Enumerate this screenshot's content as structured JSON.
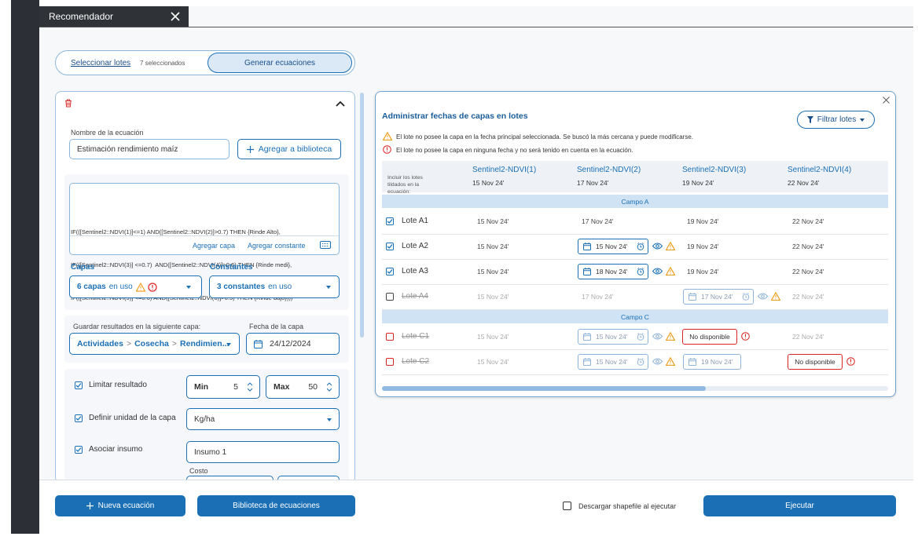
{
  "tab": {
    "title": "Recomendador"
  },
  "stepper": {
    "step1": "Seleccionar lotes",
    "step1_count": "7 seleccionados",
    "step2": "Generar ecuaciones"
  },
  "equation": {
    "name_label": "Nombre de la ecuación",
    "name_value": "Estimación rendimiento maíz",
    "add_library": "Agregar a biblioteca",
    "formula": [
      "IF(([Sentinel2::NDVI(1)]<=1) AND([Sentinel2::NDVI(2)]>0.7) THEN {Rinde Alto},",
      "IF(([Sentinel2::NDVI(3)] <=0.7)  AND([Sentinel2::NDVI(4)]>0.6) THEN {Rinde medi},",
      "IF(([Sentinel2::NDVI(5)] <=0.6) AND([Sentinel2::NDVI(6)]>0.5) THEN {Rinde bajo})))"
    ],
    "add_layer": "Agregar capa",
    "add_constant": "Agregar constante",
    "layers_label": "Capas",
    "layers_count": "6 capas",
    "layers_suffix": "en uso",
    "constants_label": "Constantes",
    "constants_count": "3 constantes",
    "constants_suffix": "en uso",
    "save_label": "Guardar resultados en la siguiente capa:",
    "save_path": [
      "Actividades",
      ">",
      "Cosecha",
      ">",
      "Rendimien..."
    ],
    "date_label": "Fecha de la capa",
    "date_value": "24/12/2024",
    "limit_label": "Limitar resultado",
    "min_label": "Min",
    "min_value": 5,
    "max_label": "Max",
    "max_value": 50,
    "unit_label": "Definir unidad de la capa",
    "unit_value": "Kg/ha",
    "input_label": "Asociar insumo",
    "input_value": "Insumo 1",
    "cost_label": "Costo"
  },
  "dates_panel": {
    "title": "Administrar fechas de capas en lotes",
    "filter": "Filtrar lotes",
    "warning_note": "El lote no posee la capa en la fecha principal seleccionada. Se buscó la más cercana y puede modificarse.",
    "error_note": "El lote no posee la capa en ninguna fecha y no será tenido en cuenta en la ecuación.",
    "include_label": "Incluir los lotes tildados en la ecuación:",
    "columns": [
      {
        "name": "Sentinel2-NDVI(1)",
        "date": "15 Nov 24'"
      },
      {
        "name": "Sentinel2-NDVI(2)",
        "date": "17 Nov 24'"
      },
      {
        "name": "Sentinel2-NDVI(3)",
        "date": "19 Nov 24'"
      },
      {
        "name": "Sentinel2-NDVI(4)",
        "date": "22 Nov 24'"
      }
    ],
    "groups": [
      {
        "name": "Campo A",
        "rows": [
          {
            "name": "Lote A1",
            "state": "included",
            "cells": [
              {
                "text": "15 Nov 24'",
                "kind": "plain"
              },
              {
                "text": "17 Nov 24'",
                "kind": "plain"
              },
              {
                "text": "19 Nov 24'",
                "kind": "plain"
              },
              {
                "text": "22 Nov 24'",
                "kind": "plain"
              }
            ]
          },
          {
            "name": "Lote A2",
            "state": "included",
            "cells": [
              {
                "text": "15 Nov 24'",
                "kind": "plain"
              },
              {
                "text": "15 Nov 24'",
                "kind": "picker",
                "warning": true
              },
              {
                "text": "19 Nov 24'",
                "kind": "plain"
              },
              {
                "text": "22 Nov 24'",
                "kind": "plain"
              }
            ]
          },
          {
            "name": "Lote A3",
            "state": "included",
            "cells": [
              {
                "text": "15 Nov 24'",
                "kind": "plain"
              },
              {
                "text": "18 Nov 24'",
                "kind": "picker",
                "warning": true
              },
              {
                "text": "19 Nov 24'",
                "kind": "plain"
              },
              {
                "text": "22 Nov 24'",
                "kind": "plain"
              }
            ]
          },
          {
            "name": "Lote A4",
            "state": "excluded",
            "cells": [
              {
                "text": "15 Nov 24'",
                "kind": "plain"
              },
              {
                "text": "17 Nov 24'",
                "kind": "plain"
              },
              {
                "text": "17 Nov 24'",
                "kind": "picker",
                "warning": true
              },
              {
                "text": "22 Nov 24'",
                "kind": "plain"
              }
            ]
          }
        ]
      },
      {
        "name": "Campo C",
        "rows": [
          {
            "name": "Lote C1",
            "state": "unavailable",
            "cells": [
              {
                "text": "15 Nov 24'",
                "kind": "plain"
              },
              {
                "text": "15 Nov 24'",
                "kind": "picker",
                "warning": true
              },
              {
                "text": "No disponible",
                "kind": "unavailable"
              },
              {
                "text": "22 Nov 24'",
                "kind": "plain"
              }
            ]
          },
          {
            "name": "Lote C2",
            "state": "unavailable",
            "cells": [
              {
                "text": "15 Nov 24'",
                "kind": "plain"
              },
              {
                "text": "15 Nov 24'",
                "kind": "picker",
                "warning": true
              },
              {
                "text": "19 Nov 24'",
                "kind": "picker",
                "warning": false
              },
              {
                "text": "No disponible",
                "kind": "unavailable"
              }
            ]
          }
        ]
      }
    ]
  },
  "footer": {
    "new_equation": "Nueva ecuación",
    "library": "Biblioteca de ecuaciones",
    "download": "Descargar shapefile al ejecutar",
    "run": "Ejecutar"
  }
}
